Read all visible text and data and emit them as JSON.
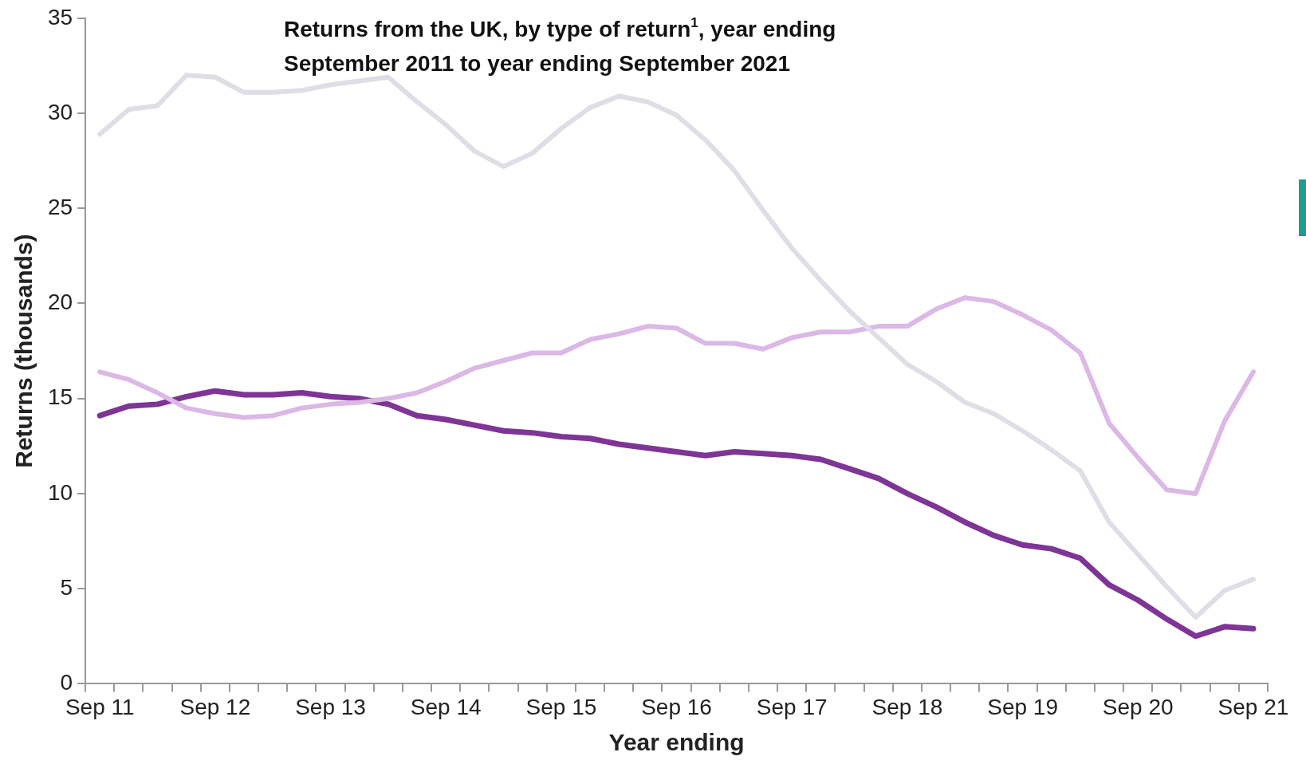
{
  "chart_data": {
    "type": "line",
    "title": "Returns from the UK, by type of return$^{1}$, year ending September 2011 to year ending September 2021",
    "xlabel": "Year ending",
    "ylabel": "Returns (thousands)",
    "categories": [
      "Sep 11",
      null,
      null,
      null,
      "Sep 12",
      null,
      null,
      null,
      "Sep 13",
      null,
      null,
      null,
      "Sep 14",
      null,
      null,
      null,
      "Sep 15",
      null,
      null,
      null,
      "Sep 16",
      null,
      null,
      null,
      "Sep 17",
      null,
      null,
      null,
      "Sep 18",
      null,
      null,
      null,
      "Sep 19",
      null,
      null,
      null,
      "Sep 20",
      null,
      null,
      null,
      "Sep 21"
    ],
    "series": [
      {
        "color": "#e0dde6",
        "values": [
          28.9,
          30.2,
          30.4,
          32.0,
          31.9,
          31.1,
          31.1,
          31.2,
          31.5,
          31.7,
          31.9,
          30.6,
          29.4,
          28.0,
          27.2,
          27.9,
          29.2,
          30.3,
          30.9,
          30.6,
          29.9,
          28.6,
          27.0,
          24.9,
          22.9,
          21.2,
          19.6,
          18.2,
          16.8,
          15.9,
          14.8,
          14.2,
          13.3,
          12.3,
          11.2,
          8.5,
          6.8,
          5.1,
          3.5,
          4.9,
          5.5
        ]
      },
      {
        "color": "#dbb8e6",
        "values": [
          16.4,
          16.0,
          15.3,
          14.5,
          14.2,
          14.0,
          14.1,
          14.5,
          14.7,
          14.8,
          15.0,
          15.3,
          15.9,
          16.6,
          17.0,
          17.4,
          17.4,
          18.1,
          18.4,
          18.8,
          18.7,
          17.9,
          17.9,
          17.6,
          18.2,
          18.5,
          18.5,
          18.8,
          18.8,
          19.7,
          20.3,
          20.1,
          19.4,
          18.6,
          17.4,
          13.7,
          11.9,
          10.2,
          10.0,
          13.8,
          16.4
        ]
      },
      {
        "color": "#7e3596",
        "values": [
          14.1,
          14.6,
          14.7,
          15.1,
          15.4,
          15.2,
          15.2,
          15.3,
          15.1,
          15.0,
          14.7,
          14.1,
          13.9,
          13.6,
          13.3,
          13.2,
          13.0,
          12.9,
          12.6,
          12.4,
          12.2,
          12.0,
          12.2,
          12.1,
          12.0,
          11.8,
          11.3,
          10.8,
          10.0,
          9.3,
          8.5,
          7.8,
          7.3,
          7.1,
          6.6,
          5.2,
          4.4,
          3.4,
          2.5,
          3.0,
          2.9
        ]
      }
    ],
    "ylim": [
      0,
      35
    ],
    "yticks": [
      0,
      5,
      10,
      15,
      20,
      25,
      30,
      35
    ],
    "grid": false,
    "legend": false,
    "marker": "none",
    "line_style": "solid"
  }
}
